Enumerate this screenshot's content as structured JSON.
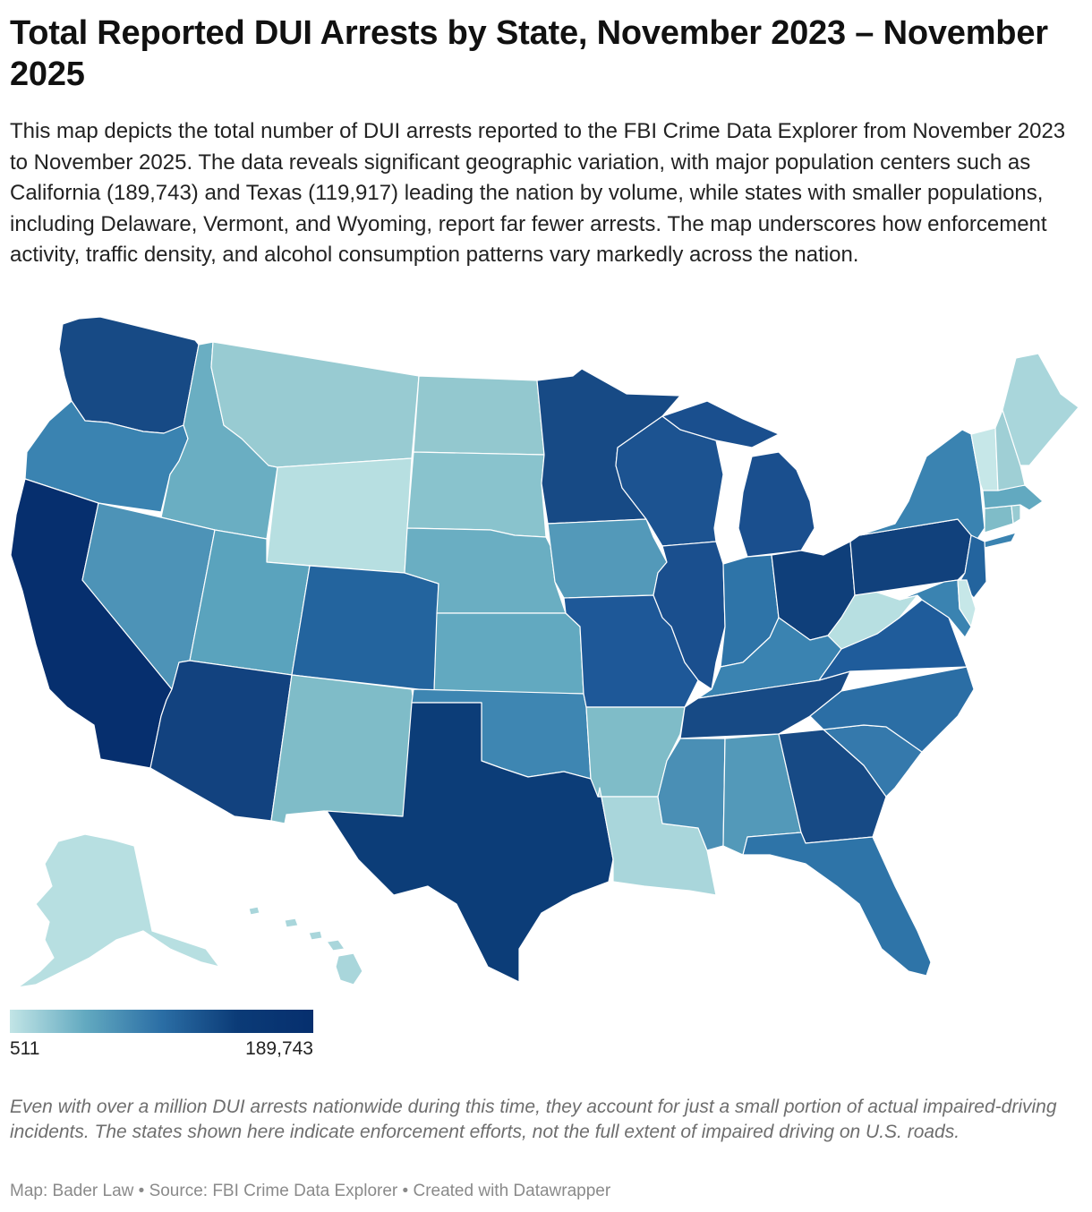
{
  "title": "Total Reported DUI Arrests by State, November 2023 – November 2025",
  "description": "This map depicts the total number of DUI arrests reported to the FBI Crime Data Explorer from November 2023 to November 2025. The data reveals significant geographic variation, with major population centers such as California (189,743) and Texas (119,917) leading the nation by volume, while states with smaller populations, including Delaware, Vermont, and Wyoming, report far fewer arrests. The map underscores how enforcement activity, traffic density, and alcohol consumption patterns vary markedly across the nation.",
  "legend": {
    "min_label": "511",
    "max_label": "189,743",
    "min_value": 511,
    "max_value": 189743,
    "colors": [
      "#c2e5e6",
      "#62a9c0",
      "#2b6ea5",
      "#0b3b77",
      "#062f6e"
    ]
  },
  "note": "Even with over a million DUI arrests nationwide during this time, they account for just a small portion of actual impaired-driving incidents. The states shown here indicate enforcement efforts, not the full extent of impaired driving on U.S. roads.",
  "credits": "Map: Bader Law • Source: FBI Crime Data Explorer • Created with Datawrapper",
  "states": [
    {
      "id": "WA",
      "name": "Washington",
      "color": "#174a85"
    },
    {
      "id": "OR",
      "name": "Oregon",
      "color": "#3a83b1"
    },
    {
      "id": "CA",
      "name": "California",
      "color": "#062f6e"
    },
    {
      "id": "ID",
      "name": "Idaho",
      "color": "#6aaec2"
    },
    {
      "id": "NV",
      "name": "Nevada",
      "color": "#4d93b7"
    },
    {
      "id": "MT",
      "name": "Montana",
      "color": "#98cbd2"
    },
    {
      "id": "WY",
      "name": "Wyoming",
      "color": "#b7dfe1"
    },
    {
      "id": "UT",
      "name": "Utah",
      "color": "#5aa3bd"
    },
    {
      "id": "AZ",
      "name": "Arizona",
      "color": "#12427f"
    },
    {
      "id": "CO",
      "name": "Colorado",
      "color": "#23649e"
    },
    {
      "id": "NM",
      "name": "New Mexico",
      "color": "#7fbcc8"
    },
    {
      "id": "ND",
      "name": "North Dakota",
      "color": "#93c8cf"
    },
    {
      "id": "SD",
      "name": "South Dakota",
      "color": "#89c3cd"
    },
    {
      "id": "NE",
      "name": "Nebraska",
      "color": "#6aaec2"
    },
    {
      "id": "KS",
      "name": "Kansas",
      "color": "#62a9c0"
    },
    {
      "id": "OK",
      "name": "Oklahoma",
      "color": "#3e86b2"
    },
    {
      "id": "TX",
      "name": "Texas",
      "color": "#0c3d78"
    },
    {
      "id": "MN",
      "name": "Minnesota",
      "color": "#174a85"
    },
    {
      "id": "IA",
      "name": "Iowa",
      "color": "#5399b9"
    },
    {
      "id": "MO",
      "name": "Missouri",
      "color": "#1e5898"
    },
    {
      "id": "AR",
      "name": "Arkansas",
      "color": "#7fbcc8"
    },
    {
      "id": "LA",
      "name": "Louisiana",
      "color": "#a9d6db"
    },
    {
      "id": "WI",
      "name": "Wisconsin",
      "color": "#1c5391"
    },
    {
      "id": "IL",
      "name": "Illinois",
      "color": "#1a4f8e"
    },
    {
      "id": "MI",
      "name": "Michigan",
      "color": "#1a4f8e"
    },
    {
      "id": "IN",
      "name": "Indiana",
      "color": "#2e74a8"
    },
    {
      "id": "OH",
      "name": "Ohio",
      "color": "#0f3f7a"
    },
    {
      "id": "KY",
      "name": "Kentucky",
      "color": "#3a83b1"
    },
    {
      "id": "TN",
      "name": "Tennessee",
      "color": "#174a85"
    },
    {
      "id": "MS",
      "name": "Mississippi",
      "color": "#4a8fb5"
    },
    {
      "id": "AL",
      "name": "Alabama",
      "color": "#5399b9"
    },
    {
      "id": "GA",
      "name": "Georgia",
      "color": "#174a85"
    },
    {
      "id": "FL",
      "name": "Florida",
      "color": "#2e74a8"
    },
    {
      "id": "SC",
      "name": "South Carolina",
      "color": "#3579ac"
    },
    {
      "id": "NC",
      "name": "North Carolina",
      "color": "#2b6ea5"
    },
    {
      "id": "VA",
      "name": "Virginia",
      "color": "#1f5c9b"
    },
    {
      "id": "WV",
      "name": "West Virginia",
      "color": "#b7dfe1"
    },
    {
      "id": "PA",
      "name": "Pennsylvania",
      "color": "#11417c"
    },
    {
      "id": "NY",
      "name": "New York",
      "color": "#3a83b1"
    },
    {
      "id": "NJ",
      "name": "New Jersey",
      "color": "#23649e"
    },
    {
      "id": "MD",
      "name": "Maryland",
      "color": "#3a83b1"
    },
    {
      "id": "DE",
      "name": "Delaware",
      "color": "#c6e7e8"
    },
    {
      "id": "CT",
      "name": "Connecticut",
      "color": "#7fbcc8"
    },
    {
      "id": "RI",
      "name": "Rhode Island",
      "color": "#98cbd2"
    },
    {
      "id": "MA",
      "name": "Massachusetts",
      "color": "#62a9c0"
    },
    {
      "id": "VT",
      "name": "Vermont",
      "color": "#c6e7e8"
    },
    {
      "id": "NH",
      "name": "New Hampshire",
      "color": "#9fcfd5"
    },
    {
      "id": "ME",
      "name": "Maine",
      "color": "#a9d6db"
    },
    {
      "id": "AK",
      "name": "Alaska",
      "color": "#b7dfe1"
    },
    {
      "id": "HI",
      "name": "Hawaii",
      "color": "#a9d6db"
    }
  ]
}
